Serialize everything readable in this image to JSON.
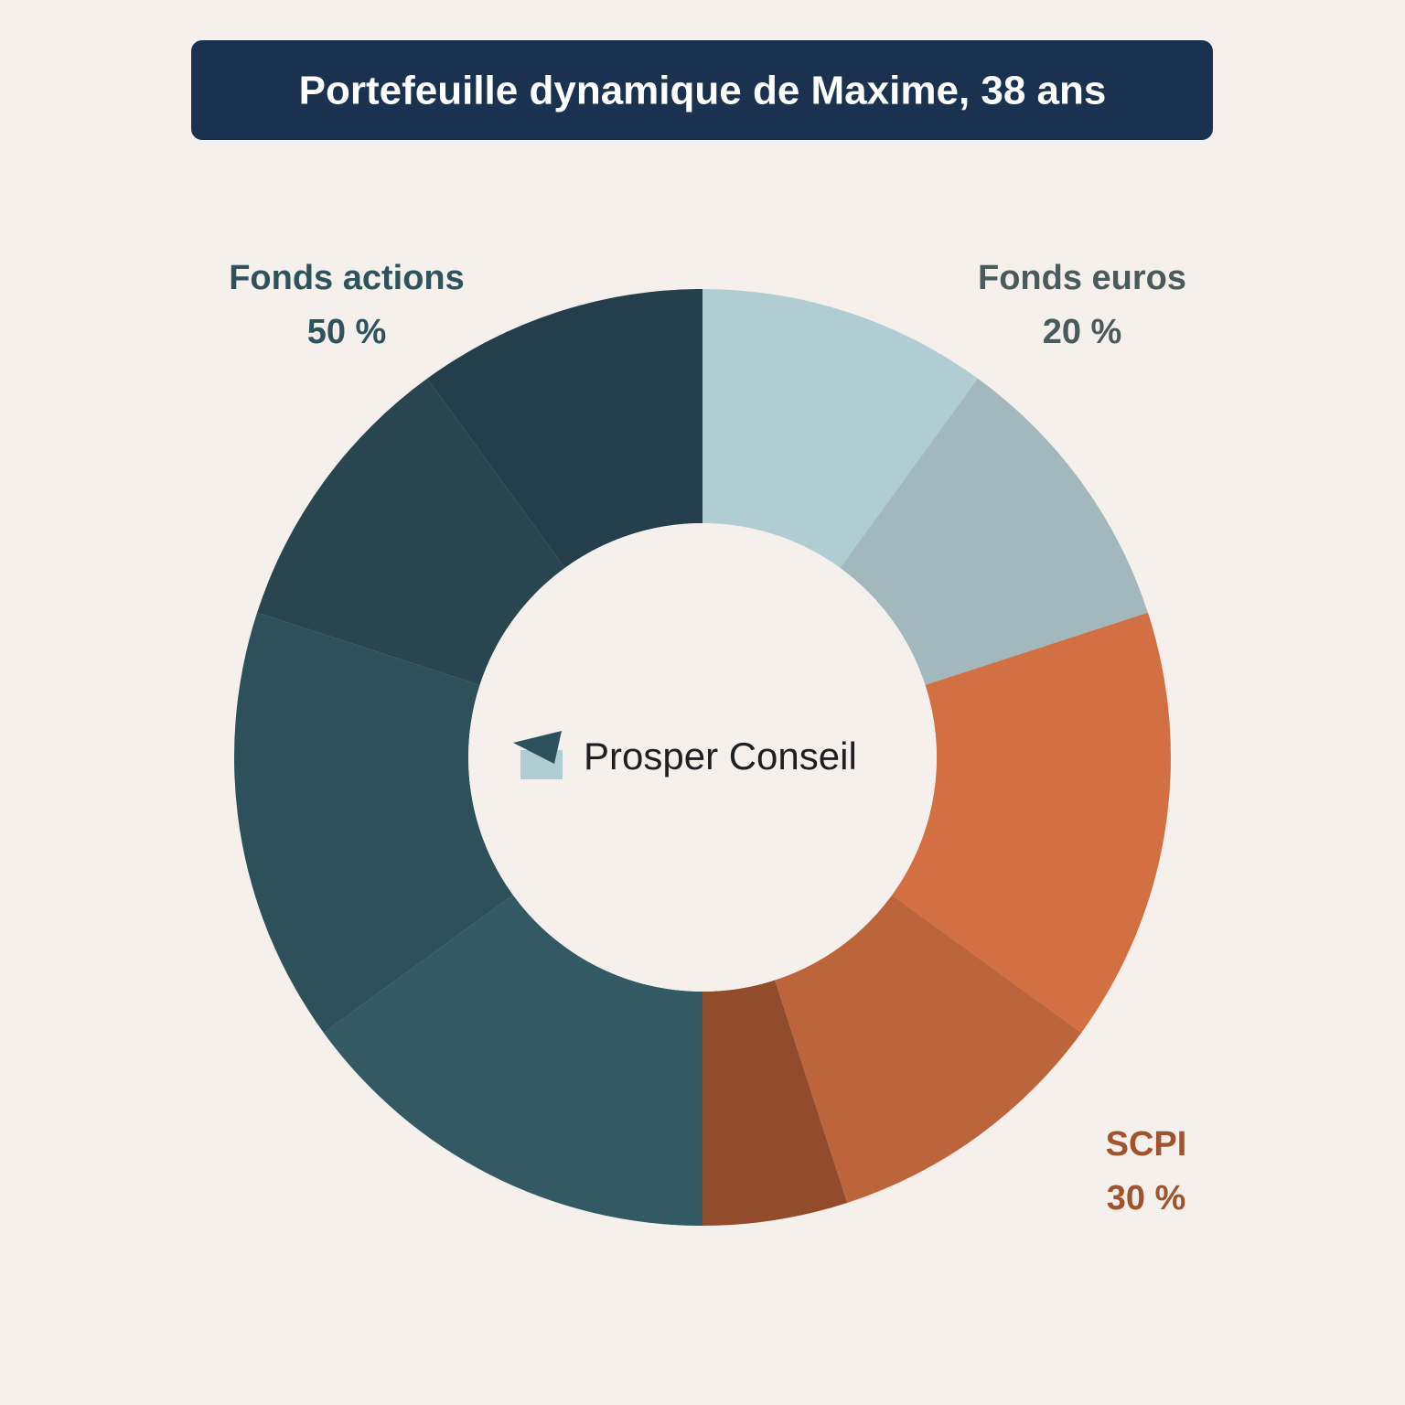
{
  "chart_data": {
    "type": "donut",
    "title": "Portefeuille dynamique de Maxime, 38 ans",
    "center_text": "Prosper Conseil",
    "categories": [
      "Fonds euros",
      "SCPI",
      "Fonds actions"
    ],
    "values": [
      20,
      30,
      50
    ],
    "value_labels": [
      "20 %",
      "30 %",
      "50 %"
    ],
    "label_colors": [
      "#4b5a5c",
      "#a0532c",
      "#2f535d"
    ],
    "segments": [
      {
        "values": [
          10,
          10
        ],
        "colors": [
          "#b0cdd3",
          "#a1b8bd"
        ]
      },
      {
        "values": [
          15,
          10,
          5
        ],
        "colors": [
          "#d27043",
          "#bc653c",
          "#924c2c"
        ]
      },
      {
        "values": [
          15,
          15,
          10,
          10
        ],
        "colors": [
          "#325964",
          "#2d505b",
          "#284550",
          "#243f4b"
        ]
      }
    ]
  }
}
